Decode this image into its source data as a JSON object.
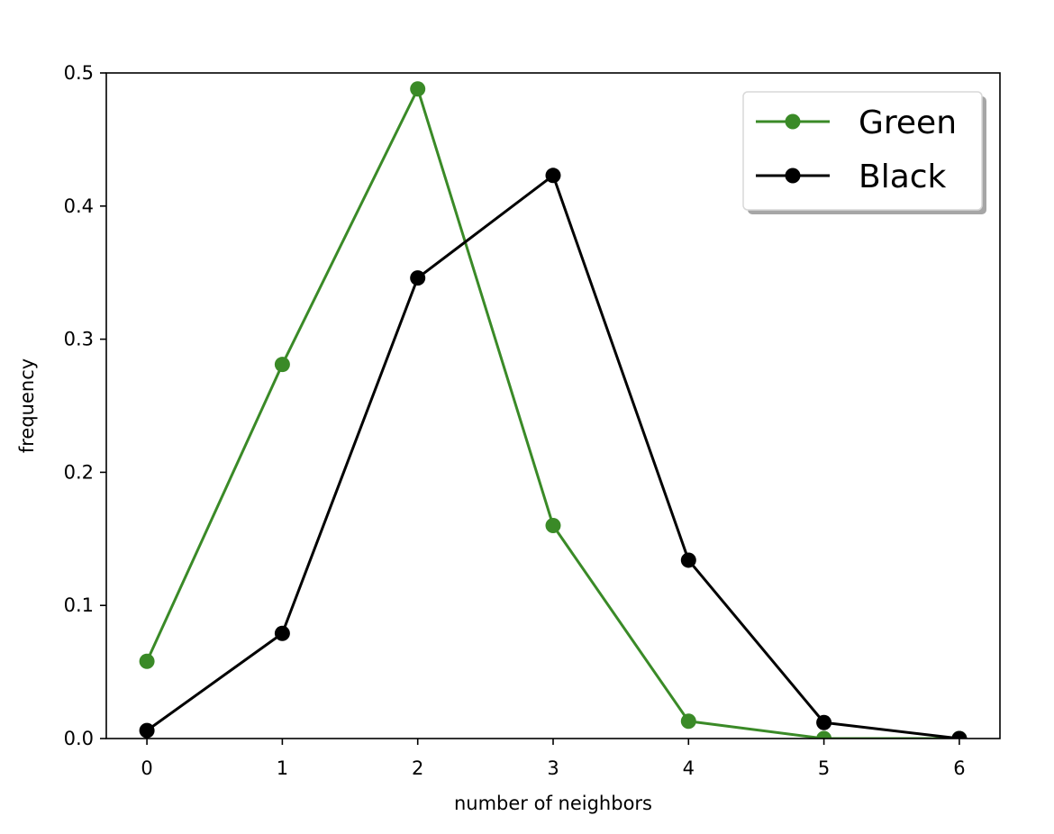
{
  "chart_data": {
    "type": "line",
    "title": "",
    "xlabel": "number of neighbors",
    "ylabel": "frequency",
    "x": [
      0,
      1,
      2,
      3,
      4,
      5,
      6
    ],
    "xlim": [
      -0.3,
      6.3
    ],
    "ylim": [
      0.0,
      0.5
    ],
    "xticks": [
      "0",
      "1",
      "2",
      "3",
      "4",
      "5",
      "6"
    ],
    "yticks": [
      "0.0",
      "0.1",
      "0.2",
      "0.3",
      "0.4",
      "0.5"
    ],
    "grid": false,
    "legend_position": "top-right",
    "series": [
      {
        "name": "Green",
        "color": "#3a8a27",
        "marker": "circle",
        "values": [
          0.058,
          0.281,
          0.488,
          0.16,
          0.013,
          0.0,
          0.0
        ]
      },
      {
        "name": "Black",
        "color": "#000000",
        "marker": "circle",
        "values": [
          0.006,
          0.079,
          0.346,
          0.423,
          0.134,
          0.012,
          0.0
        ]
      }
    ]
  }
}
